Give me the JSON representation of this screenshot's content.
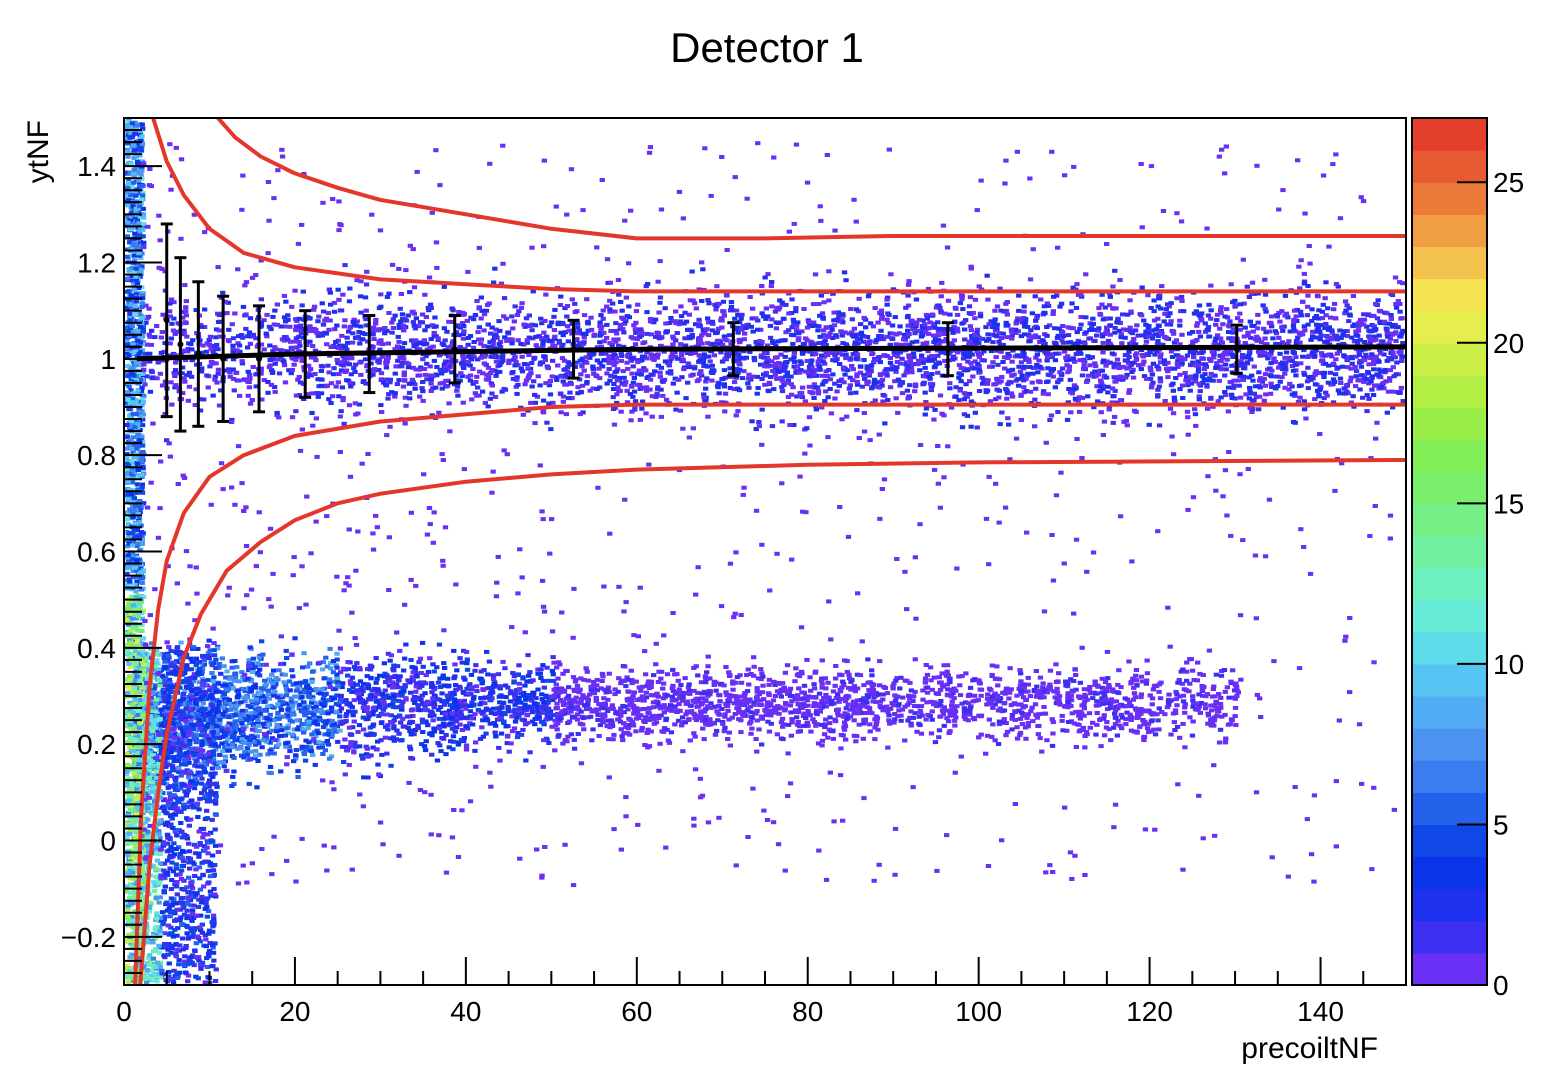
{
  "chart_data": {
    "type": "heatmap",
    "title": "Detector 1",
    "xlabel": "precoiltNF",
    "ylabel": "ytNF",
    "xlim": [
      0,
      150
    ],
    "ylim": [
      -0.3,
      1.5
    ],
    "x_ticks": [
      0,
      20,
      40,
      60,
      80,
      100,
      120,
      140
    ],
    "x_tick_labels": [
      "0",
      "20",
      "40",
      "60",
      "80",
      "100",
      "120",
      "140"
    ],
    "y_ticks": [
      -0.2,
      0,
      0.2,
      0.4,
      0.6,
      0.8,
      1,
      1.2,
      1.4
    ],
    "y_tick_labels": [
      "−0.2",
      "0",
      "0.2",
      "0.4",
      "0.6",
      "0.8",
      "1",
      "1.2",
      "1.4"
    ],
    "colorbar": {
      "range": [
        0,
        27
      ],
      "ticks": [
        0,
        5,
        10,
        15,
        20,
        25
      ],
      "tick_labels": [
        "0",
        "5",
        "10",
        "15",
        "20",
        "25"
      ],
      "colors": [
        "#6a2ff5",
        "#3d2ff0",
        "#1f30ee",
        "#0a34ea",
        "#1048e8",
        "#2462ec",
        "#3b7cef",
        "#4c92f1",
        "#52acf3",
        "#55c4f2",
        "#5fdcea",
        "#66ecd8",
        "#6cf0bf",
        "#72f0a2",
        "#76ef86",
        "#78ee6a",
        "#82ee55",
        "#99ef48",
        "#b3ef44",
        "#ccef46",
        "#e6ee4d",
        "#f5e352",
        "#f2c24c",
        "#ef9e43",
        "#ec7b3a",
        "#e85a32",
        "#e43f2d"
      ]
    },
    "cells": [
      {
        "name": "upper-band",
        "x_range": [
          1,
          150
        ],
        "y_center": 1.01,
        "y_spread": 0.1,
        "density": "high",
        "level": 2
      },
      {
        "name": "lower-band",
        "x_range": [
          1,
          130
        ],
        "y_center": 0.28,
        "y_spread": 0.08,
        "density": "high",
        "level": 6
      },
      {
        "name": "left-edge-column",
        "x_range": [
          0,
          2
        ],
        "y_range": [
          -0.3,
          1.5
        ],
        "density": "very-high",
        "level": 14
      },
      {
        "name": "scatter-background",
        "x_range": [
          2,
          150
        ],
        "y_range": [
          -0.3,
          1.5
        ],
        "density": "sparse",
        "level": 1
      }
    ],
    "profile": {
      "name": "mean-profile",
      "color": "#000000",
      "points": [
        {
          "x": 5,
          "y": 1.08,
          "err": 0.2
        },
        {
          "x": 6.6,
          "y": 1.03,
          "err": 0.18
        },
        {
          "x": 8.7,
          "y": 1.01,
          "err": 0.15
        },
        {
          "x": 11.6,
          "y": 1.0,
          "err": 0.13
        },
        {
          "x": 15.8,
          "y": 1.0,
          "err": 0.11
        },
        {
          "x": 21.2,
          "y": 1.01,
          "err": 0.09
        },
        {
          "x": 28.7,
          "y": 1.01,
          "err": 0.08
        },
        {
          "x": 38.7,
          "y": 1.02,
          "err": 0.07
        },
        {
          "x": 52.6,
          "y": 1.02,
          "err": 0.06
        },
        {
          "x": 71.3,
          "y": 1.02,
          "err": 0.055
        },
        {
          "x": 96.4,
          "y": 1.02,
          "err": 0.055
        },
        {
          "x": 130.2,
          "y": 1.02,
          "err": 0.05
        }
      ],
      "line": [
        [
          1.5,
          1.0
        ],
        [
          20,
          1.01
        ],
        [
          60,
          1.02
        ],
        [
          150,
          1.025
        ]
      ]
    },
    "cut_lines": {
      "color": "#e4372c",
      "series": [
        {
          "name": "outer-upper",
          "points": [
            [
              11,
              1.5
            ],
            [
              13,
              1.46
            ],
            [
              16,
              1.42
            ],
            [
              20,
              1.385
            ],
            [
              25,
              1.355
            ],
            [
              30,
              1.33
            ],
            [
              40,
              1.3
            ],
            [
              50,
              1.27
            ],
            [
              60,
              1.25
            ],
            [
              75,
              1.25
            ],
            [
              90,
              1.255
            ],
            [
              110,
              1.255
            ],
            [
              150,
              1.255
            ]
          ]
        },
        {
          "name": "inner-upper",
          "points": [
            [
              3.4,
              1.5
            ],
            [
              5,
              1.41
            ],
            [
              7,
              1.34
            ],
            [
              10,
              1.27
            ],
            [
              14,
              1.22
            ],
            [
              20,
              1.19
            ],
            [
              30,
              1.165
            ],
            [
              40,
              1.155
            ],
            [
              50,
              1.145
            ],
            [
              60,
              1.14
            ],
            [
              80,
              1.14
            ],
            [
              110,
              1.14
            ],
            [
              150,
              1.14
            ]
          ]
        },
        {
          "name": "inner-lower",
          "points": [
            [
              1.3,
              -0.3
            ],
            [
              2,
              0.05
            ],
            [
              3,
              0.32
            ],
            [
              4,
              0.48
            ],
            [
              5,
              0.58
            ],
            [
              7,
              0.68
            ],
            [
              10,
              0.755
            ],
            [
              14,
              0.8
            ],
            [
              20,
              0.84
            ],
            [
              30,
              0.87
            ],
            [
              40,
              0.885
            ],
            [
              50,
              0.9
            ],
            [
              60,
              0.905
            ],
            [
              80,
              0.905
            ],
            [
              110,
              0.905
            ],
            [
              150,
              0.905
            ]
          ]
        },
        {
          "name": "outer-lower",
          "points": [
            [
              1.9,
              -0.3
            ],
            [
              3,
              -0.05
            ],
            [
              4,
              0.1
            ],
            [
              5,
              0.22
            ],
            [
              7,
              0.38
            ],
            [
              9,
              0.47
            ],
            [
              12,
              0.56
            ],
            [
              16,
              0.62
            ],
            [
              20,
              0.665
            ],
            [
              25,
              0.7
            ],
            [
              30,
              0.72
            ],
            [
              40,
              0.745
            ],
            [
              50,
              0.76
            ],
            [
              60,
              0.77
            ],
            [
              80,
              0.78
            ],
            [
              100,
              0.785
            ],
            [
              150,
              0.79
            ]
          ]
        }
      ]
    }
  }
}
